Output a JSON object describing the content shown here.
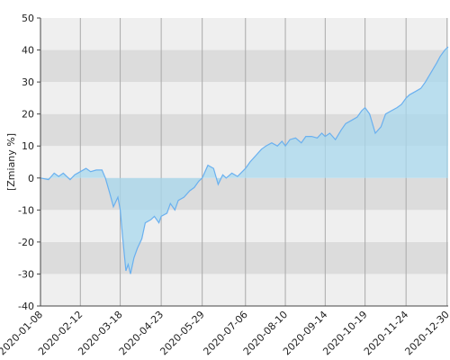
{
  "chart_data": {
    "type": "area",
    "y_label": "[Zmiany %]",
    "x": [
      "2020-01-08",
      "2020-01-15",
      "2020-01-20",
      "2020-01-24",
      "2020-01-28",
      "2020-02-03",
      "2020-02-07",
      "2020-02-12",
      "2020-02-17",
      "2020-02-21",
      "2020-02-26",
      "2020-03-02",
      "2020-03-05",
      "2020-03-09",
      "2020-03-12",
      "2020-03-16",
      "2020-03-18",
      "2020-03-20",
      "2020-03-23",
      "2020-03-25",
      "2020-03-27",
      "2020-03-30",
      "2020-04-02",
      "2020-04-06",
      "2020-04-09",
      "2020-04-14",
      "2020-04-17",
      "2020-04-21",
      "2020-04-23",
      "2020-04-28",
      "2020-05-01",
      "2020-05-05",
      "2020-05-08",
      "2020-05-13",
      "2020-05-18",
      "2020-05-22",
      "2020-05-26",
      "2020-05-29",
      "2020-06-03",
      "2020-06-08",
      "2020-06-12",
      "2020-06-16",
      "2020-06-19",
      "2020-06-24",
      "2020-06-29",
      "2020-07-06",
      "2020-07-10",
      "2020-07-15",
      "2020-07-20",
      "2020-07-24",
      "2020-07-29",
      "2020-08-03",
      "2020-08-07",
      "2020-08-10",
      "2020-08-14",
      "2020-08-19",
      "2020-08-24",
      "2020-08-28",
      "2020-09-02",
      "2020-09-07",
      "2020-09-11",
      "2020-09-14",
      "2020-09-18",
      "2020-09-23",
      "2020-09-28",
      "2020-10-02",
      "2020-10-07",
      "2020-10-12",
      "2020-10-16",
      "2020-10-19",
      "2020-10-23",
      "2020-10-28",
      "2020-11-02",
      "2020-11-06",
      "2020-11-11",
      "2020-11-16",
      "2020-11-20",
      "2020-11-24",
      "2020-11-27",
      "2020-12-02",
      "2020-12-07",
      "2020-12-11",
      "2020-12-16",
      "2020-12-21",
      "2020-12-24",
      "2020-12-28",
      "2020-12-31"
    ],
    "series": [
      {
        "color": "#6ab0ef",
        "fill": "#a8d8ee",
        "values": [
          0,
          -0.5,
          1.5,
          0.5,
          1.5,
          -0.5,
          1,
          2,
          3,
          2,
          2.5,
          2.5,
          0,
          -5,
          -9,
          -6,
          -10,
          -18,
          -29,
          -27,
          -30,
          -25,
          -22,
          -19,
          -14,
          -13,
          -12,
          -14,
          -12,
          -11,
          -8,
          -10,
          -7,
          -6,
          -4,
          -3,
          -1,
          0,
          4,
          3,
          -2,
          1,
          0,
          1.5,
          0.5,
          3,
          5,
          7,
          9,
          10,
          11,
          10,
          11.5,
          10,
          12,
          12.5,
          11,
          13,
          13,
          12.5,
          14,
          13,
          14,
          12,
          15,
          17,
          18,
          19,
          21,
          22,
          20,
          14,
          16,
          20,
          21,
          22,
          23,
          25,
          26,
          27,
          28,
          30,
          33,
          36,
          38,
          40,
          41
        ]
      }
    ],
    "xlim": [
      "2020-01-08",
      "2020-12-31"
    ],
    "xticks": [
      "2020-01-08",
      "2020-02-12",
      "2020-03-18",
      "2020-04-23",
      "2020-05-29",
      "2020-07-06",
      "2020-08-10",
      "2020-09-14",
      "2020-10-19",
      "2020-11-24",
      "2020-12-30"
    ],
    "ylim": [
      -40,
      50
    ],
    "yticks": [
      -40,
      -30,
      -20,
      -10,
      0,
      10,
      20,
      30,
      40,
      50
    ],
    "grid": true
  }
}
